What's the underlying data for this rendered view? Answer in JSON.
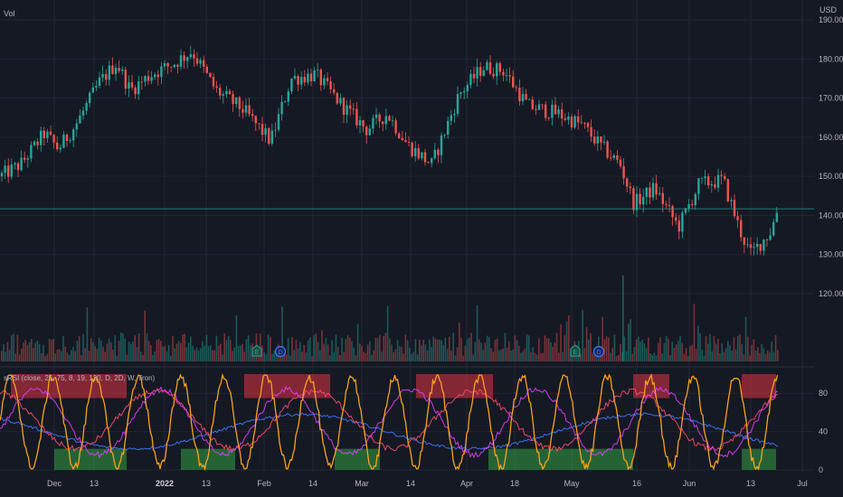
{
  "header": {
    "volume_label": "Vol",
    "currency_label": "USD"
  },
  "indicator": {
    "legend": "sRSI (close, 25, 75, 8, 19, 120, D, 2D, W, Tron)"
  },
  "price_axis": {
    "ticks": [
      "190.00",
      "180.00",
      "170.00",
      "160.00",
      "150.00",
      "140.00",
      "130.00",
      "120.00"
    ]
  },
  "rsi_axis": {
    "ticks": [
      "80",
      "40",
      "0"
    ]
  },
  "time_axis": {
    "ticks": [
      "Dec",
      "13",
      "2022",
      "13",
      "Feb",
      "14",
      "Mar",
      "14",
      "Apr",
      "18",
      "May",
      "16",
      "Jun",
      "13",
      "Jul"
    ]
  },
  "markers": [
    {
      "icon": "earnings-icon",
      "symbol": "E"
    },
    {
      "icon": "dividend-icon",
      "symbol": "D"
    },
    {
      "icon": "earnings-icon",
      "symbol": "E"
    },
    {
      "icon": "dividend-icon",
      "symbol": "D"
    }
  ],
  "colors": {
    "background": "#151924",
    "grid": "#222632",
    "up": "#26a69a",
    "down": "#ef5350",
    "rsi_fast": "#f7a21b",
    "rsi_mid": "#e040fb",
    "rsi_slow": "#ff4d6d",
    "rsi_long": "#3d7bff",
    "overbought_zone": "#f23645",
    "oversold_zone": "#3cbf4a",
    "last_price_line": "#26a69a"
  },
  "chart_data": [
    {
      "type": "candlestick",
      "title": "",
      "ylim": [
        110,
        195
      ],
      "yticks": [
        120,
        130,
        140,
        150,
        160,
        170,
        180,
        190
      ],
      "xticks": [
        "Dec",
        "13",
        "2022",
        "13",
        "Feb",
        "14",
        "Mar",
        "14",
        "Apr",
        "18",
        "May",
        "16",
        "Jun",
        "13",
        "Jul"
      ],
      "date_range": [
        "2021-11-09",
        "2022-06-24"
      ],
      "close_path": [
        {
          "x": "2021-11-09",
          "y": 150
        },
        {
          "x": "2021-11-15",
          "y": 153
        },
        {
          "x": "2021-11-22",
          "y": 161
        },
        {
          "x": "2021-11-26",
          "y": 157
        },
        {
          "x": "2021-12-01",
          "y": 163
        },
        {
          "x": "2021-12-08",
          "y": 174
        },
        {
          "x": "2021-12-13",
          "y": 179
        },
        {
          "x": "2021-12-17",
          "y": 172
        },
        {
          "x": "2021-12-23",
          "y": 176
        },
        {
          "x": "2021-12-30",
          "y": 179
        },
        {
          "x": "2022-01-04",
          "y": 182
        },
        {
          "x": "2022-01-11",
          "y": 172
        },
        {
          "x": "2022-01-19",
          "y": 167
        },
        {
          "x": "2022-01-27",
          "y": 159
        },
        {
          "x": "2022-02-02",
          "y": 175
        },
        {
          "x": "2022-02-09",
          "y": 176
        },
        {
          "x": "2022-02-17",
          "y": 168
        },
        {
          "x": "2022-02-24",
          "y": 162
        },
        {
          "x": "2022-03-02",
          "y": 166
        },
        {
          "x": "2022-03-08",
          "y": 158
        },
        {
          "x": "2022-03-15",
          "y": 153
        },
        {
          "x": "2022-03-23",
          "y": 171
        },
        {
          "x": "2022-03-30",
          "y": 178
        },
        {
          "x": "2022-04-05",
          "y": 177
        },
        {
          "x": "2022-04-12",
          "y": 168
        },
        {
          "x": "2022-04-21",
          "y": 166
        },
        {
          "x": "2022-04-28",
          "y": 163
        },
        {
          "x": "2022-05-03",
          "y": 158
        },
        {
          "x": "2022-05-09",
          "y": 153
        },
        {
          "x": "2022-05-13",
          "y": 143
        },
        {
          "x": "2022-05-19",
          "y": 147
        },
        {
          "x": "2022-05-26",
          "y": 137
        },
        {
          "x": "2022-06-01",
          "y": 148
        },
        {
          "x": "2022-06-08",
          "y": 149
        },
        {
          "x": "2022-06-13",
          "y": 136
        },
        {
          "x": "2022-06-16",
          "y": 130
        },
        {
          "x": "2022-06-22",
          "y": 136
        },
        {
          "x": "2022-06-24",
          "y": 142
        }
      ],
      "last_price": 141.7,
      "volume_ylim": [
        0,
        100
      ]
    },
    {
      "type": "line",
      "title": "",
      "ylim": [
        0,
        100
      ],
      "yticks": [
        0,
        40,
        80
      ],
      "overbought_band": [
        75,
        100
      ],
      "oversold_band": [
        0,
        25
      ],
      "series": []
    }
  ]
}
